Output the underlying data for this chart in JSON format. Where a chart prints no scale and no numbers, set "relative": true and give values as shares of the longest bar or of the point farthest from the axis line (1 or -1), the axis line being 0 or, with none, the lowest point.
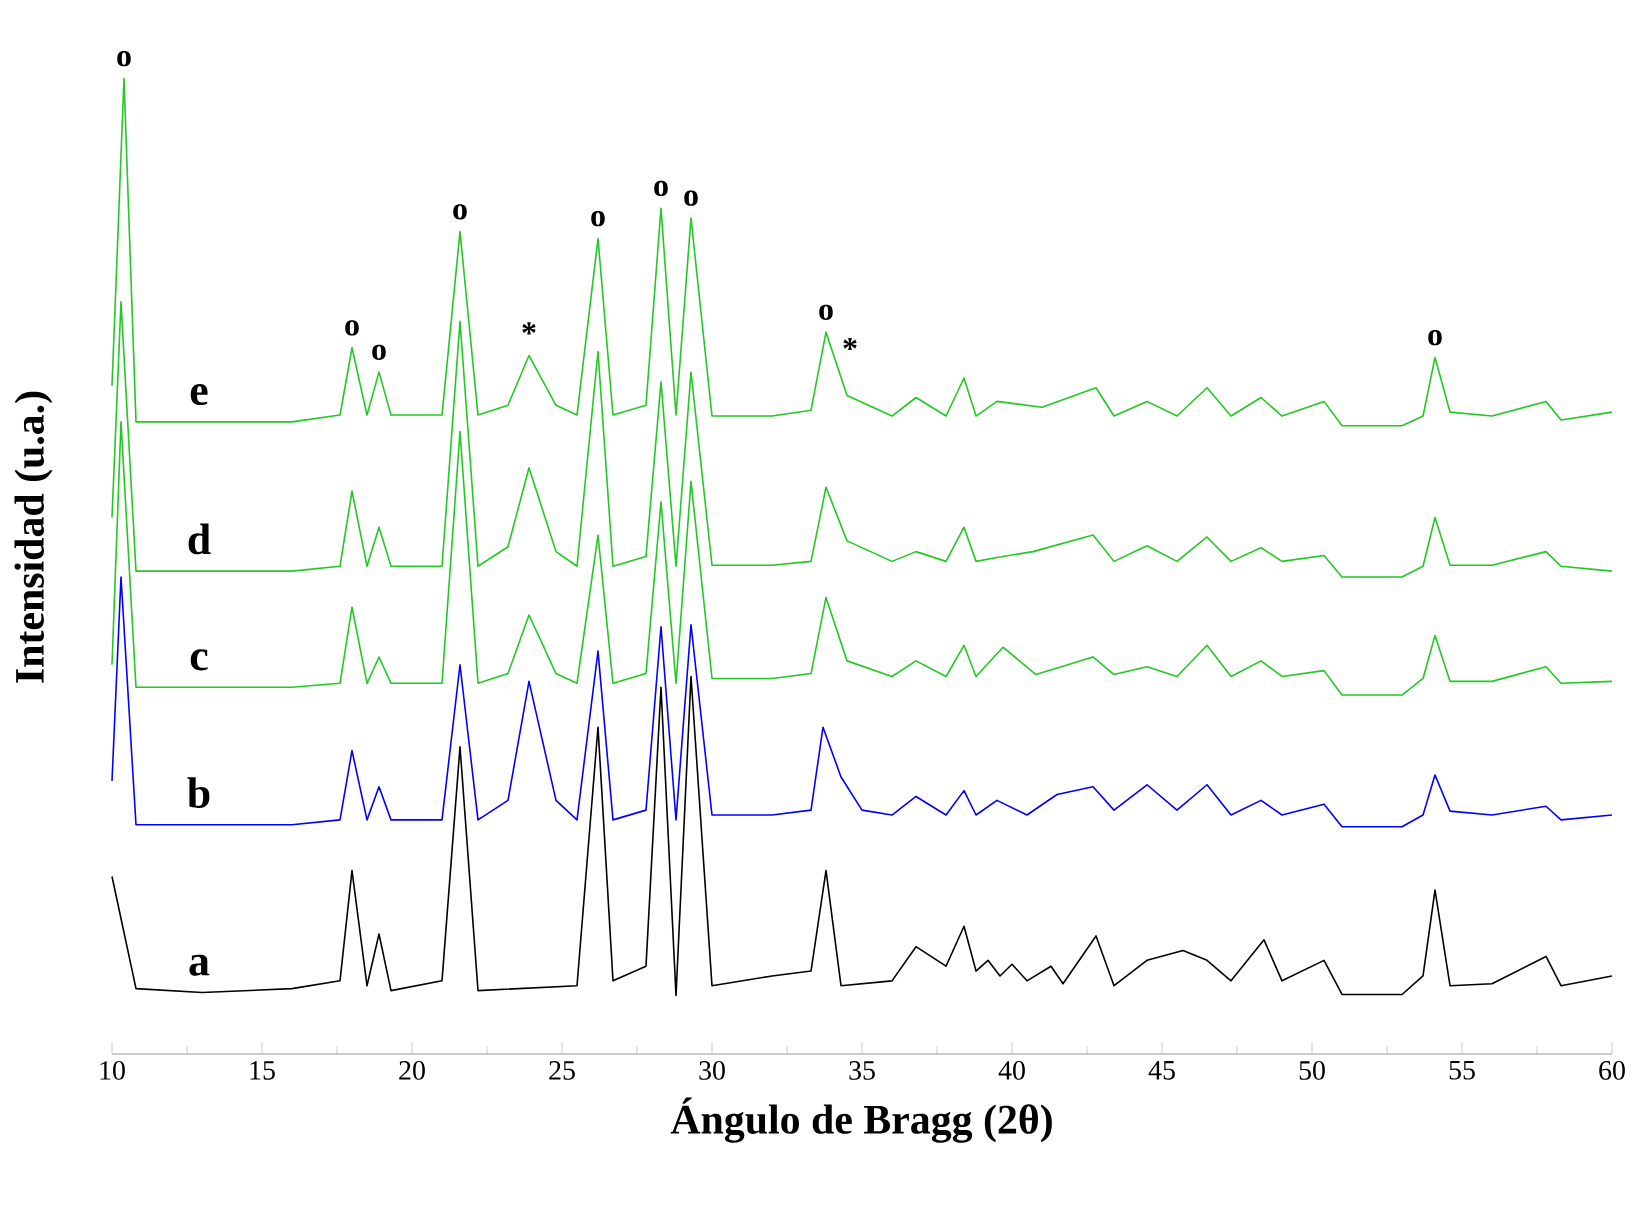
{
  "chart_data": {
    "type": "line",
    "relative": true,
    "xlabel": "Ángulo de Bragg (2θ)",
    "ylabel": "Intensidad (u.a.)",
    "xlim": [
      10,
      60
    ],
    "xticks": [
      10,
      15,
      20,
      25,
      30,
      35,
      40,
      45,
      50,
      55,
      60
    ],
    "tick_labels": "x",
    "marker": "none",
    "line_style": "solid",
    "series": [
      {
        "name": "a",
        "color": "#000000",
        "x": [
          10.0,
          10.3,
          10.8,
          13,
          16,
          17.6,
          18.0,
          18.5,
          18.9,
          19.3,
          21.0,
          21.6,
          22.2,
          25.5,
          26.2,
          26.7,
          27.8,
          28.3,
          28.8,
          29.3,
          30.0,
          32,
          33.3,
          33.8,
          34.3,
          36,
          36.8,
          37.8,
          38.4,
          38.8,
          39.2,
          39.6,
          40.0,
          40.5,
          41.3,
          41.7,
          42.8,
          43.4,
          44.5,
          45.7,
          46.5,
          47.3,
          48.4,
          49,
          50.4,
          51.0,
          53.0,
          53.7,
          54.1,
          54.6,
          56,
          57.8,
          58.3,
          60
        ],
        "values": [
          0.182,
          null,
          0.067,
          0.063,
          0.067,
          0.075,
          0.188,
          0.07,
          0.123,
          0.065,
          0.075,
          0.315,
          0.065,
          0.07,
          0.335,
          0.075,
          0.09,
          0.376,
          0.06,
          0.387,
          0.07,
          0.08,
          0.085,
          0.188,
          0.07,
          0.075,
          0.11,
          0.09,
          0.131,
          0.085,
          0.096,
          0.08,
          0.092,
          0.075,
          0.09,
          0.072,
          0.121,
          0.07,
          0.096,
          0.106,
          0.096,
          0.075,
          0.117,
          0.075,
          0.096,
          0.061,
          0.061,
          0.08,
          0.168,
          0.07,
          0.072,
          0.1,
          0.07,
          0.08
        ]
      },
      {
        "name": "b",
        "color": "#0000ff",
        "x": [
          10.0,
          10.3,
          10.8,
          13,
          16,
          17.6,
          18.0,
          18.5,
          18.9,
          19.3,
          21.0,
          21.6,
          22.2,
          23.2,
          23.9,
          24.8,
          25.5,
          26.2,
          26.7,
          27.8,
          28.3,
          28.8,
          29.3,
          30.0,
          32,
          33.3,
          33.7,
          34.3,
          35,
          36,
          36.8,
          37.8,
          38.4,
          38.8,
          39.5,
          40.5,
          41.5,
          42.7,
          43.4,
          44.5,
          45.5,
          46.5,
          47.3,
          48.3,
          49,
          50.4,
          51.0,
          53.0,
          53.7,
          54.1,
          54.6,
          56,
          57.8,
          58.3,
          60
        ],
        "values": [
          0.28,
          0.489,
          0.235,
          0.235,
          0.235,
          0.24,
          0.311,
          0.24,
          0.274,
          0.24,
          0.24,
          0.399,
          0.24,
          0.26,
          0.382,
          0.26,
          0.24,
          0.413,
          0.24,
          0.25,
          0.438,
          0.24,
          0.44,
          0.245,
          0.245,
          0.25,
          0.335,
          0.284,
          0.25,
          0.245,
          0.264,
          0.245,
          0.27,
          0.245,
          0.26,
          0.245,
          0.266,
          0.274,
          0.25,
          0.276,
          0.25,
          0.276,
          0.245,
          0.26,
          0.245,
          0.256,
          0.233,
          0.233,
          0.245,
          0.286,
          0.249,
          0.245,
          0.254,
          0.24,
          0.245
        ]
      },
      {
        "name": "c",
        "color": "#22c922",
        "x": [
          10.0,
          10.3,
          10.8,
          13,
          16,
          17.6,
          18.0,
          18.5,
          18.9,
          19.3,
          21.0,
          21.6,
          22.2,
          23.2,
          23.9,
          24.8,
          25.5,
          26.2,
          26.7,
          27.8,
          28.3,
          28.8,
          29.3,
          30.0,
          32,
          33.3,
          33.8,
          34.5,
          36,
          36.8,
          37.8,
          38.4,
          38.8,
          39.7,
          40.8,
          42.7,
          43.4,
          44.5,
          45.5,
          46.5,
          47.3,
          48.3,
          49,
          50.4,
          51.0,
          53.0,
          53.7,
          54.1,
          54.6,
          56,
          57.8,
          58.3,
          60
        ],
        "values": [
          0.399,
          0.648,
          0.376,
          0.376,
          0.376,
          0.38,
          0.458,
          0.38,
          0.407,
          0.38,
          0.38,
          0.638,
          0.38,
          0.39,
          0.45,
          0.39,
          0.38,
          0.532,
          0.38,
          0.39,
          0.566,
          0.38,
          0.587,
          0.385,
          0.385,
          0.39,
          0.468,
          0.403,
          0.387,
          0.403,
          0.387,
          0.419,
          0.387,
          0.417,
          0.389,
          0.407,
          0.389,
          0.397,
          0.387,
          0.419,
          0.387,
          0.403,
          0.387,
          0.393,
          0.368,
          0.368,
          0.385,
          0.429,
          0.382,
          0.382,
          0.397,
          0.38,
          0.382
        ]
      },
      {
        "name": "d",
        "color": "#22c922",
        "x": [
          10.0,
          10.3,
          10.8,
          13,
          16,
          17.6,
          18.0,
          18.5,
          18.9,
          19.3,
          21.0,
          21.6,
          22.2,
          23.2,
          23.9,
          24.8,
          25.5,
          26.2,
          26.7,
          27.8,
          28.3,
          28.8,
          29.3,
          30.0,
          32,
          33.3,
          33.8,
          34.5,
          36,
          36.8,
          37.8,
          38.4,
          38.8,
          39.5,
          40.7,
          42.7,
          43.4,
          44.5,
          45.5,
          46.5,
          47.3,
          48.3,
          49,
          50.4,
          51.0,
          53.0,
          53.7,
          54.1,
          54.6,
          56,
          57.8,
          58.3,
          60
        ],
        "values": [
          0.55,
          0.771,
          0.495,
          0.495,
          0.495,
          0.5,
          0.577,
          0.5,
          0.54,
          0.5,
          0.5,
          0.751,
          0.5,
          0.52,
          0.601,
          0.515,
          0.5,
          0.72,
          0.5,
          0.51,
          0.689,
          0.5,
          0.699,
          0.501,
          0.501,
          0.505,
          0.581,
          0.526,
          0.505,
          0.515,
          0.505,
          0.54,
          0.505,
          0.509,
          0.515,
          0.532,
          0.505,
          0.521,
          0.505,
          0.53,
          0.505,
          0.519,
          0.505,
          0.511,
          0.489,
          0.489,
          0.5,
          0.55,
          0.501,
          0.501,
          0.515,
          0.5,
          0.495
        ]
      },
      {
        "name": "e",
        "color": "#22c922",
        "x": [
          10.0,
          10.4,
          10.8,
          13,
          16,
          17.6,
          18.0,
          18.5,
          18.9,
          19.3,
          21.0,
          21.6,
          22.2,
          23.2,
          23.9,
          24.8,
          25.5,
          26.2,
          26.7,
          27.8,
          28.3,
          28.8,
          29.3,
          30.0,
          32,
          33.3,
          33.8,
          34.5,
          36,
          36.8,
          37.8,
          38.4,
          38.8,
          39.5,
          41.0,
          42.8,
          43.4,
          44.5,
          45.5,
          46.5,
          47.3,
          48.3,
          49,
          50.4,
          51.0,
          53.0,
          53.7,
          54.1,
          54.6,
          56,
          57.8,
          58.3,
          60
        ],
        "values": [
          0.685,
          1.0,
          0.648,
          0.648,
          0.648,
          0.655,
          0.724,
          0.655,
          0.699,
          0.655,
          0.655,
          0.843,
          0.655,
          0.665,
          0.716,
          0.665,
          0.655,
          0.836,
          0.655,
          0.665,
          0.867,
          0.655,
          0.857,
          0.654,
          0.654,
          0.66,
          0.74,
          0.675,
          0.654,
          0.673,
          0.654,
          0.693,
          0.654,
          0.669,
          0.663,
          0.683,
          0.654,
          0.669,
          0.654,
          0.683,
          0.654,
          0.673,
          0.654,
          0.669,
          0.644,
          0.644,
          0.654,
          0.714,
          0.658,
          0.654,
          0.669,
          0.65,
          0.658
        ]
      }
    ],
    "annotations": [
      {
        "text": "o",
        "x": 10.4,
        "y": 1.0
      },
      {
        "text": "o",
        "x": 18.0,
        "y": 0.724
      },
      {
        "text": "o",
        "x": 18.9,
        "y": 0.699
      },
      {
        "text": "o",
        "x": 21.6,
        "y": 0.843
      },
      {
        "text": "*",
        "x": 23.9,
        "y": 0.716
      },
      {
        "text": "o",
        "x": 26.2,
        "y": 0.836
      },
      {
        "text": "o",
        "x": 28.3,
        "y": 0.867
      },
      {
        "text": "o",
        "x": 29.3,
        "y": 0.857
      },
      {
        "text": "o",
        "x": 33.8,
        "y": 0.74
      },
      {
        "text": "*",
        "x": 34.6,
        "y": 0.7
      },
      {
        "text": "o",
        "x": 54.1,
        "y": 0.714
      }
    ]
  }
}
